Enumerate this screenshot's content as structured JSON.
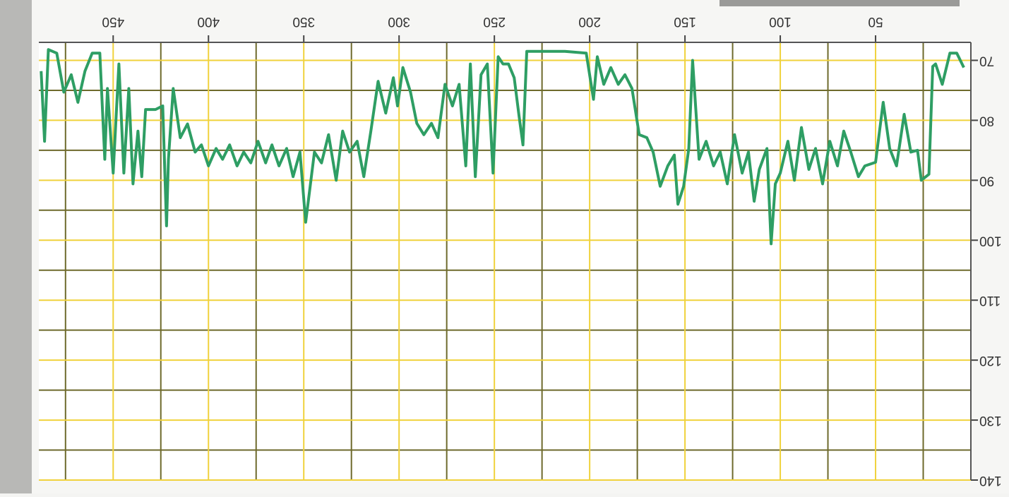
{
  "chart_data": {
    "type": "line",
    "x": [
      3.7,
      7.4,
      11,
      15,
      18.5,
      20,
      22,
      26,
      28,
      31.5,
      35,
      39,
      42.6,
      46,
      50,
      55.6,
      59,
      63,
      66.7,
      70,
      74,
      77.8,
      81.5,
      85,
      88.9,
      92.6,
      96,
      100,
      102.6,
      104.8,
      107,
      111,
      113.7,
      116.7,
      120,
      124,
      127.8,
      131.5,
      135,
      138.9,
      142.6,
      146,
      148,
      150.7,
      153.7,
      155.6,
      159,
      163,
      166.7,
      170,
      174,
      177.8,
      181.5,
      185,
      188.9,
      192.6,
      196,
      198,
      201.8,
      213,
      224,
      233,
      235,
      237,
      239.6,
      242.6,
      245.5,
      248,
      250.7,
      253.7,
      257,
      260,
      262.6,
      265,
      268.5,
      272,
      275.9,
      279.6,
      283,
      287,
      290.7,
      294,
      298,
      300.8,
      303,
      307,
      311,
      314.8,
      318.5,
      322,
      326,
      329.6,
      333,
      337,
      340.7,
      344.4,
      349,
      352,
      355.6,
      359,
      363,
      366.7,
      370,
      374,
      377.8,
      381.5,
      385,
      388.9,
      392.6,
      396,
      400,
      403.7,
      407,
      411,
      414.8,
      418.5,
      421,
      422,
      424,
      427.8,
      433,
      435,
      437,
      439.6,
      441.8,
      444.4,
      447,
      450,
      453,
      454.4,
      457,
      461,
      464.8,
      468.5,
      472,
      475.9,
      479.6,
      484,
      486,
      487.8
    ],
    "series": [
      {
        "color": "#2e9e64",
        "values": [
          71.2,
          68.8,
          68.8,
          74,
          70.6,
          71,
          89,
          90,
          85,
          85.3,
          79,
          87.6,
          84.7,
          77,
          87,
          87.6,
          89.4,
          85.3,
          81.8,
          87.6,
          83.5,
          90.6,
          84.7,
          88.2,
          81.2,
          90,
          83.5,
          88.8,
          90.6,
          100.6,
          84.7,
          88.2,
          93.5,
          85.3,
          88.8,
          82.4,
          90.6,
          85.3,
          87.6,
          83.5,
          86.5,
          70,
          84.7,
          91,
          94,
          85.8,
          87.6,
          91,
          85.3,
          82.9,
          82.4,
          74.7,
          72.4,
          74,
          71.2,
          74,
          69.4,
          76.5,
          68.8,
          68.5,
          68.5,
          68.5,
          84.1,
          79.4,
          72.9,
          70.6,
          70.6,
          69.4,
          88.8,
          70.6,
          72.4,
          89.4,
          70.6,
          87.6,
          74,
          77.6,
          74,
          82.9,
          80.5,
          82.4,
          80.5,
          75.3,
          71.2,
          77.6,
          72.9,
          78.8,
          73.5,
          81.8,
          89.4,
          83.5,
          85.3,
          81.8,
          90,
          82.4,
          87.1,
          85.3,
          97,
          85.3,
          89.4,
          84.7,
          87.6,
          84.1,
          87.1,
          83.5,
          87.1,
          85.3,
          87.6,
          84.1,
          86.5,
          84.7,
          87.6,
          84.1,
          85.3,
          80.6,
          82.9,
          74.7,
          86.5,
          97.6,
          77.6,
          78.2,
          78.2,
          89.4,
          81.8,
          90.6,
          74.7,
          88.8,
          70.6,
          88.8,
          74.7,
          86.5,
          68.8,
          68.8,
          71.8,
          77,
          72.4,
          75.3,
          68.8,
          68.2,
          83.5,
          71.8
        ]
      }
    ],
    "xlim": [
      0,
      489
    ],
    "xticks": [
      50,
      100,
      150,
      200,
      250,
      300,
      350,
      400,
      450
    ],
    "ylim": [
      67,
      140
    ],
    "yticks": [
      70,
      80,
      90,
      100,
      110,
      120,
      130,
      140
    ],
    "xminor": [
      25,
      75,
      125,
      175,
      225,
      275,
      325,
      375,
      425,
      475
    ],
    "yminor": [
      75,
      85,
      95,
      105,
      115,
      125,
      135
    ],
    "grid": true,
    "grid_color": "#f0d23c",
    "minor_grid_color": "#6e6a2c"
  }
}
